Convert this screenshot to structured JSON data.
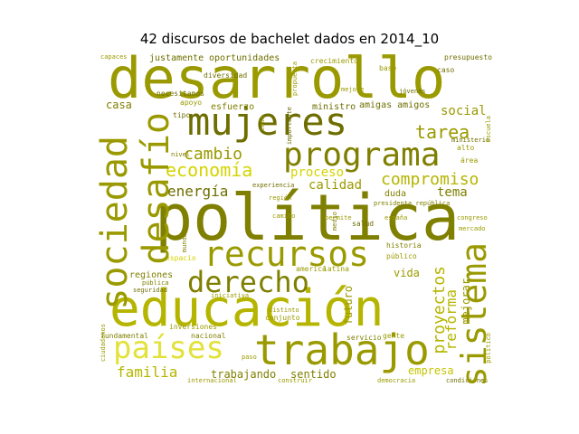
{
  "title": "42 discursos de bachelet dados en 2014_10",
  "colors": [
    "#9a9a00",
    "#b5b500",
    "#7f7f00",
    "#d4d400",
    "#6e6e00",
    "#c4c400",
    "#e2e23a",
    "#a8a820"
  ],
  "words": {
    "politica": "política",
    "desarrollo": "desarrollo",
    "educacion": "educación",
    "mujeres": "mujeres",
    "programa": "programa",
    "trabajo": "trabajo",
    "recursos": "recursos",
    "sociedad": "sociedad",
    "desafio": "desafío",
    "sistema": "sistema",
    "paises": "países",
    "derecho": "derecho",
    "economia": "economía",
    "compromiso": "compromiso",
    "proyectos": "proyectos",
    "cambio": "cambio",
    "tarea": "tarea",
    "energia": "energía",
    "familia": "familia",
    "reforma": "reforma",
    "proceso": "proceso",
    "calidad": "calidad",
    "social": "social",
    "justamente": "justamente",
    "oportunidades": "oportunidades",
    "trabajando": "trabajando",
    "sentido": "sentido",
    "empresa": "empresa",
    "regiones": "regiones",
    "tema": "tema",
    "vida": "vida",
    "futuro": "futuro",
    "mejorar": "mejorar",
    "casa": "casa",
    "esfuerzo": "esfuerzo",
    "ministro": "ministro",
    "amigas_amigos": "amigas amigos",
    "diversidad": "diversidad",
    "necesitamos": "necesitamos",
    "apoyo": "apoyo",
    "fundamental": "fundamental",
    "inversiones": "inversiones",
    "nacional": "nacional",
    "servicio": "servicio",
    "gente": "gente",
    "conjunto": "conjunto",
    "distinto": "distinto",
    "espacio": "espacio",
    "duda": "duda",
    "historia": "historia",
    "publico": "público",
    "salud": "salud",
    "medio": "medio",
    "experiencia": "experiencia",
    "crecimiento": "crecimiento",
    "presupuesto": "presupuesto",
    "jovenes": "jóvenes",
    "mundo": "mundo",
    "condiciones": "condiciones",
    "democracia": "democracia",
    "internacional": "internacional",
    "construir": "construir",
    "area": "área",
    "alto": "alto",
    "ministerio": "ministerio",
    "mercado": "mercado",
    "congreso": "congreso",
    "capaces": "capaces",
    "publica": "pública",
    "seguridad": "seguridad",
    "paso": "paso",
    "caso": "caso",
    "base": "base",
    "tipo": "tipo",
    "nivel": "nivel",
    "mejore": "mejore",
    "propuesta": "propuesta",
    "permite": "permite",
    "camino": "camino",
    "iniciativa": "iniciativa",
    "latina": "latina",
    "america": "america",
    "chile": "chile",
    "cada": "cada",
    "importante": "importante",
    "presidenta_republica": "presidenta república",
    "region": "región",
    "tambien": "también",
    "acuerdo": "acuerdo",
    "posible": "posible",
    "espana": "españa",
    "politico": "político",
    "escuela": "escuela",
    "gracias": "gracias",
    "forma": "forma",
    "manera": "manera",
    "ciudadanos": "ciudadanos",
    "hacer": "hacer"
  }
}
